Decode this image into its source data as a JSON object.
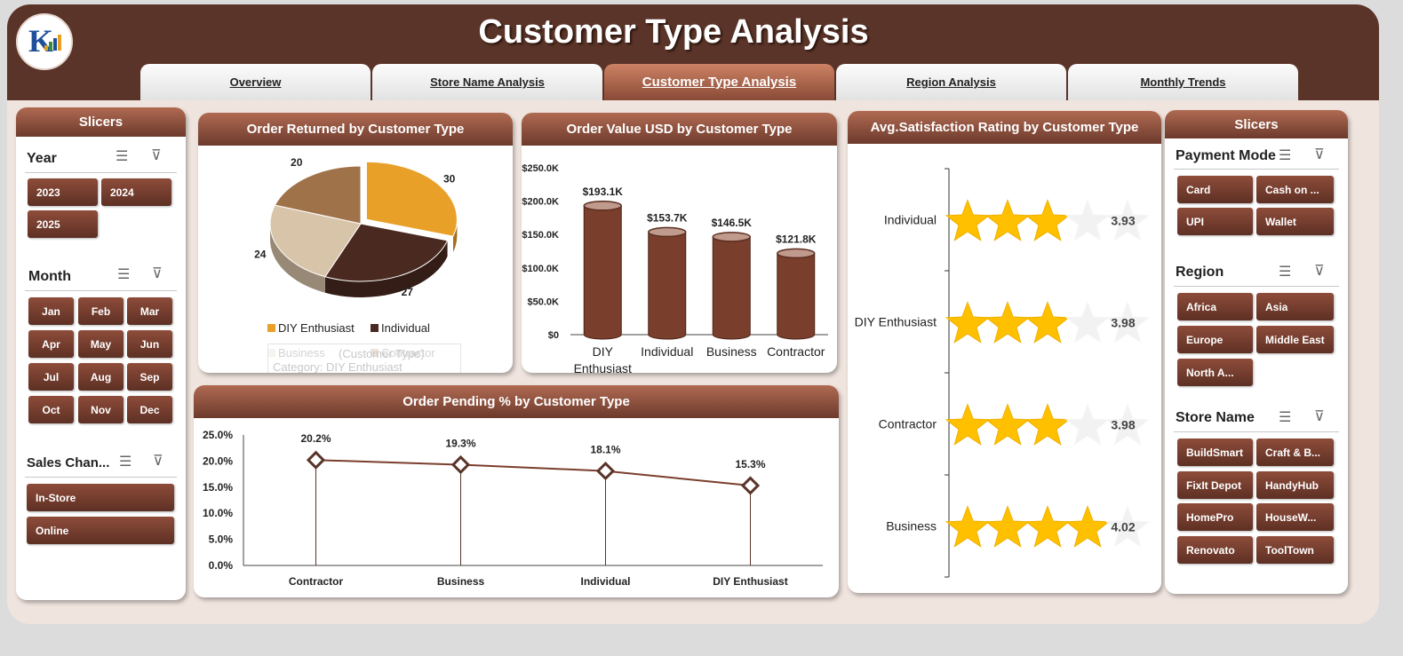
{
  "header": {
    "title": "Customer Type Analysis",
    "tabs": [
      "Overview",
      "Store Name Analysis",
      "Customer Type Analysis",
      "Region Analysis",
      "Monthly Trends"
    ],
    "active_tab": "Customer Type Analysis"
  },
  "left_slicers": {
    "title": "Slicers",
    "year": {
      "label": "Year",
      "items": [
        "2023",
        "2024",
        "2025"
      ]
    },
    "month": {
      "label": "Month",
      "items": [
        "Jan",
        "Feb",
        "Mar",
        "Apr",
        "May",
        "Jun",
        "Jul",
        "Aug",
        "Sep",
        "Oct",
        "Nov",
        "Dec"
      ]
    },
    "sales_channel": {
      "label": "Sales Chan...",
      "items": [
        "In-Store",
        "Online"
      ]
    }
  },
  "right_slicers": {
    "title": "Slicers",
    "payment_mode": {
      "label": "Payment Mode",
      "items": [
        "Card",
        "Cash on ...",
        "UPI",
        "Wallet"
      ]
    },
    "region": {
      "label": "Region",
      "items": [
        "Africa",
        "Asia",
        "Europe",
        "Middle East",
        "North A..."
      ]
    },
    "store_name": {
      "label": "Store Name",
      "items": [
        "BuildSmart",
        "Craft & B...",
        "FixIt Depot",
        "HandyHub",
        "HomePro",
        "HouseW...",
        "Renovato",
        "ToolTown"
      ]
    }
  },
  "icons": {
    "multi_select": "checklist-icon",
    "clear_filter": "clear-filter-icon"
  },
  "colors": {
    "accent": "#5a3428",
    "bar": "#7a3e2c",
    "star": "#ffc000"
  },
  "chart_data": [
    {
      "id": "returned",
      "type": "pie",
      "title": "Order Returned by Customer Type",
      "categories": [
        "DIY Enthusiast",
        "Individual",
        "Business",
        "Contractor"
      ],
      "values": [
        30,
        27,
        24,
        20
      ],
      "colors": [
        "#e8a028",
        "#4a2a20",
        "#d8c4a8",
        "#a0724a"
      ],
      "legend_position": "bottom",
      "tooltip_text": [
        "(Customer Type)",
        "Category: DIY Enthusiast"
      ]
    },
    {
      "id": "order_value",
      "type": "bar",
      "title": "Order Value USD by Customer Type",
      "categories": [
        "DIY Enthusiast",
        "Individual",
        "Business",
        "Contractor"
      ],
      "category_labels": [
        [
          "DIY",
          "Enthusiast"
        ],
        [
          "Individual"
        ],
        [
          "Business"
        ],
        [
          "Contractor"
        ]
      ],
      "values": [
        193.1,
        153.7,
        146.5,
        121.8
      ],
      "data_labels": [
        "$193.1K",
        "$153.7K",
        "$146.5K",
        "$121.8K"
      ],
      "unit": "K USD",
      "yticks": [
        "$0",
        "$50.0K",
        "$100.0K",
        "$150.0K",
        "$200.0K",
        "$250.0K"
      ],
      "ylim": [
        0,
        250
      ]
    },
    {
      "id": "satisfaction",
      "type": "bar",
      "title": "Avg.Satisfaction Rating by Customer Type",
      "categories": [
        "Individual",
        "DIY Enthusiast",
        "Contractor",
        "Business"
      ],
      "values": [
        3.93,
        3.98,
        3.98,
        4.02
      ],
      "data_labels": [
        "3.93",
        "3.98",
        "3.98",
        "4.02"
      ],
      "max": 5
    },
    {
      "id": "pending",
      "type": "line",
      "title": "Order Pending % by Customer Type",
      "categories": [
        "Contractor",
        "Business",
        "Individual",
        "DIY Enthusiast"
      ],
      "values": [
        20.2,
        19.3,
        18.1,
        15.3
      ],
      "data_labels": [
        "20.2%",
        "19.3%",
        "18.1%",
        "15.3%"
      ],
      "yticks": [
        "0.0%",
        "5.0%",
        "10.0%",
        "15.0%",
        "20.0%",
        "25.0%"
      ],
      "ylim": [
        0,
        25
      ]
    }
  ]
}
